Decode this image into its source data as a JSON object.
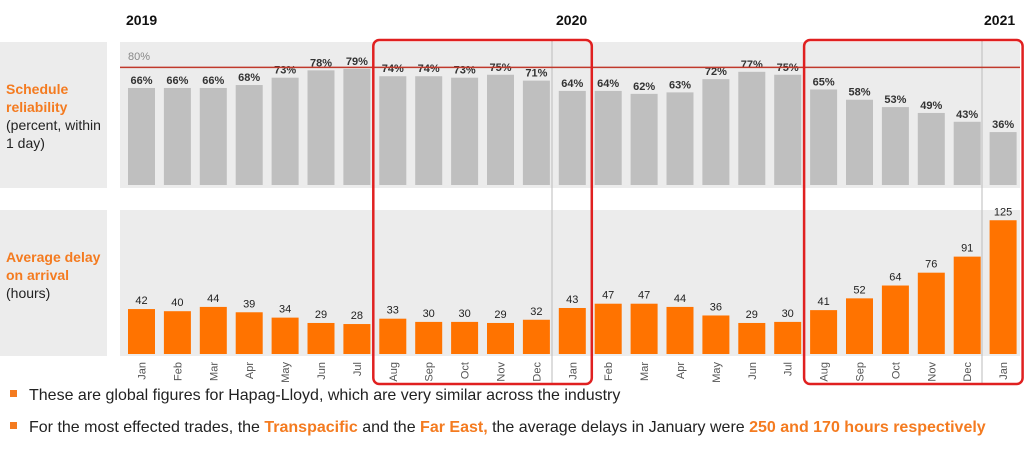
{
  "years": [
    "2019",
    "2020",
    "2021"
  ],
  "panels": {
    "top": {
      "title": "Schedule reliability",
      "subtitle": "(percent, within 1 day)"
    },
    "bottom": {
      "title": "Average delay on arrival",
      "subtitle": "(hours)"
    }
  },
  "reference_label": "80%",
  "chart_data": [
    {
      "type": "bar",
      "title": "Schedule reliability",
      "ylabel": "(percent, within 1 day)",
      "categories": [
        "Jan",
        "Feb",
        "Mar",
        "Apr",
        "May",
        "Jun",
        "Jul",
        "Aug",
        "Sep",
        "Oct",
        "Nov",
        "Dec",
        "Jan",
        "Feb",
        "Mar",
        "Apr",
        "May",
        "Jun",
        "Jul",
        "Aug",
        "Sep",
        "Oct",
        "Nov",
        "Dec",
        "Jan"
      ],
      "values": [
        66,
        66,
        66,
        68,
        73,
        78,
        79,
        74,
        74,
        73,
        75,
        71,
        64,
        64,
        62,
        63,
        72,
        77,
        75,
        65,
        58,
        53,
        49,
        43,
        36
      ],
      "value_labels": [
        "66%",
        "66%",
        "66%",
        "68%",
        "73%",
        "78%",
        "79%",
        "74%",
        "74%",
        "73%",
        "75%",
        "71%",
        "64%",
        "64%",
        "62%",
        "63%",
        "72%",
        "77%",
        "75%",
        "65%",
        "58%",
        "53%",
        "49%",
        "43%",
        "36%"
      ],
      "reference_line": 80,
      "ylim": [
        0,
        80
      ],
      "color": "#bfbfbf",
      "reference_color": "#c0392b"
    },
    {
      "type": "bar",
      "title": "Average delay on arrival",
      "ylabel": "(hours)",
      "categories": [
        "Jan",
        "Feb",
        "Mar",
        "Apr",
        "May",
        "Jun",
        "Jul",
        "Aug",
        "Sep",
        "Oct",
        "Nov",
        "Dec",
        "Jan",
        "Feb",
        "Mar",
        "Apr",
        "May",
        "Jun",
        "Jul",
        "Aug",
        "Sep",
        "Oct",
        "Nov",
        "Dec",
        "Jan"
      ],
      "values": [
        42,
        40,
        44,
        39,
        34,
        29,
        28,
        33,
        30,
        30,
        29,
        32,
        43,
        47,
        47,
        44,
        36,
        29,
        30,
        41,
        52,
        64,
        76,
        91,
        125
      ],
      "ylim": [
        0,
        125
      ],
      "color": "#ff7300"
    }
  ],
  "highlight_ranges": [
    {
      "from": "Aug 2019",
      "to": "Jan 2020"
    },
    {
      "from": "Aug 2020",
      "to": "Jan 2021"
    }
  ],
  "bullets": [
    {
      "text": "These are global figures for Hapag-Lloyd, which are very similar across the industry"
    },
    {
      "p1": "For the most effected trades, the ",
      "h1": "Transpacific",
      "p2": " and the ",
      "h2": "Far East,",
      "p3": " the average delays in January were ",
      "h3": "250 and 170 hours respectively"
    }
  ]
}
